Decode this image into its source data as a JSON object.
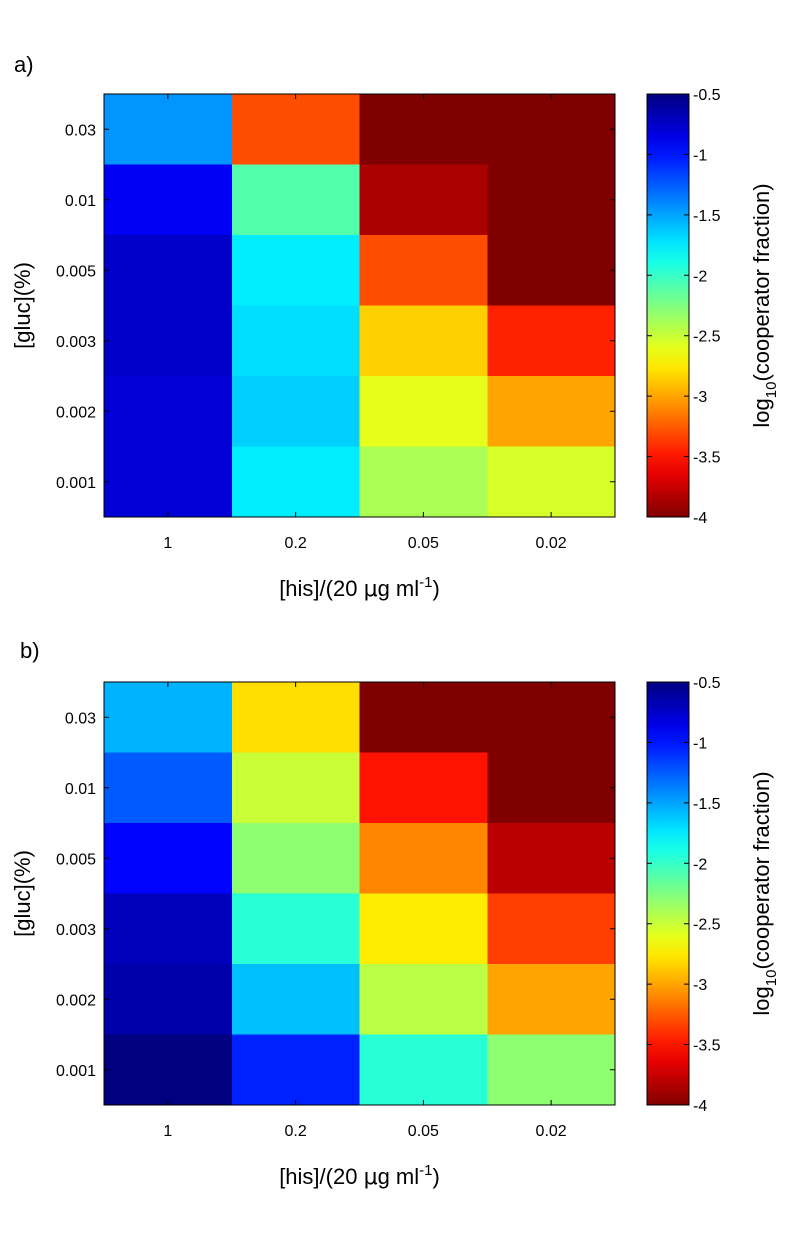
{
  "figure": {
    "panels": [
      "a)",
      "b)"
    ]
  },
  "colors": {
    "jet": [
      "#00008f",
      "#0000ff",
      "#00ffff",
      "#ffff00",
      "#ff0000",
      "#800000"
    ],
    "frame": "#000000",
    "background": "#ffffff"
  },
  "chart_data": [
    {
      "type": "heatmap",
      "panel": "a)",
      "title": "",
      "xlabel": "[his]/(20 µg ml⁻¹)",
      "xlabel_parts": {
        "pre": "[his]/(20 ",
        "mu": "μ",
        "mid": "g ml",
        "sup": "-1",
        "post": ")"
      },
      "ylabel": "[gluc](%)",
      "x_categories": [
        "1",
        "0.2",
        "0.05",
        "0.02"
      ],
      "y_categories": [
        "0.03",
        "0.01",
        "0.005",
        "0.003",
        "0.002",
        "0.001"
      ],
      "values": [
        [
          -1.45,
          -3.3,
          -4.0,
          -4.0
        ],
        [
          -0.9,
          -2.1,
          -3.85,
          -4.0
        ],
        [
          -0.75,
          -1.75,
          -3.3,
          -4.0
        ],
        [
          -0.75,
          -1.7,
          -2.85,
          -3.45
        ],
        [
          -0.8,
          -1.65,
          -2.6,
          -3.0
        ],
        [
          -0.8,
          -1.75,
          -2.4,
          -2.55
        ]
      ],
      "colorbar": {
        "label": "log10(cooperator fraction)",
        "label_parts": {
          "pre": "log",
          "sub": "10",
          "post": "(cooperator fraction)"
        },
        "range": [
          -4,
          -0.5
        ],
        "ticks": [
          "-0.5",
          "-1",
          "-1.5",
          "-2",
          "-2.5",
          "-3",
          "-3.5",
          "-4"
        ],
        "tick_values": [
          -0.5,
          -1,
          -1.5,
          -2,
          -2.5,
          -3,
          -3.5,
          -4
        ]
      }
    },
    {
      "type": "heatmap",
      "panel": "b)",
      "title": "",
      "xlabel": "[his]/(20 µg ml⁻¹)",
      "xlabel_parts": {
        "pre": "[his]/(20 ",
        "mu": "μ",
        "mid": "g ml",
        "sup": "-1",
        "post": ")"
      },
      "ylabel": "[gluc](%)",
      "x_categories": [
        "1",
        "0.2",
        "0.05",
        "0.02"
      ],
      "y_categories": [
        "0.03",
        "0.01",
        "0.005",
        "0.003",
        "0.002",
        "0.001"
      ],
      "values": [
        [
          -1.55,
          -2.8,
          -4.0,
          -4.0
        ],
        [
          -1.25,
          -2.5,
          -3.5,
          -4.0
        ],
        [
          -0.95,
          -2.3,
          -3.1,
          -3.8
        ],
        [
          -0.7,
          -1.95,
          -2.75,
          -3.35
        ],
        [
          -0.65,
          -1.6,
          -2.45,
          -3.0
        ],
        [
          -0.5,
          -1.05,
          -1.95,
          -2.3
        ]
      ],
      "colorbar": {
        "label": "log10(cooperator fraction)",
        "label_parts": {
          "pre": "log",
          "sub": "10",
          "post": "(cooperator fraction)"
        },
        "range": [
          -4,
          -0.5
        ],
        "ticks": [
          "-0.5",
          "-1",
          "-1.5",
          "-2",
          "-2.5",
          "-3",
          "-3.5",
          "-4"
        ],
        "tick_values": [
          -0.5,
          -1,
          -1.5,
          -2,
          -2.5,
          -3,
          -3.5,
          -4
        ]
      }
    }
  ]
}
